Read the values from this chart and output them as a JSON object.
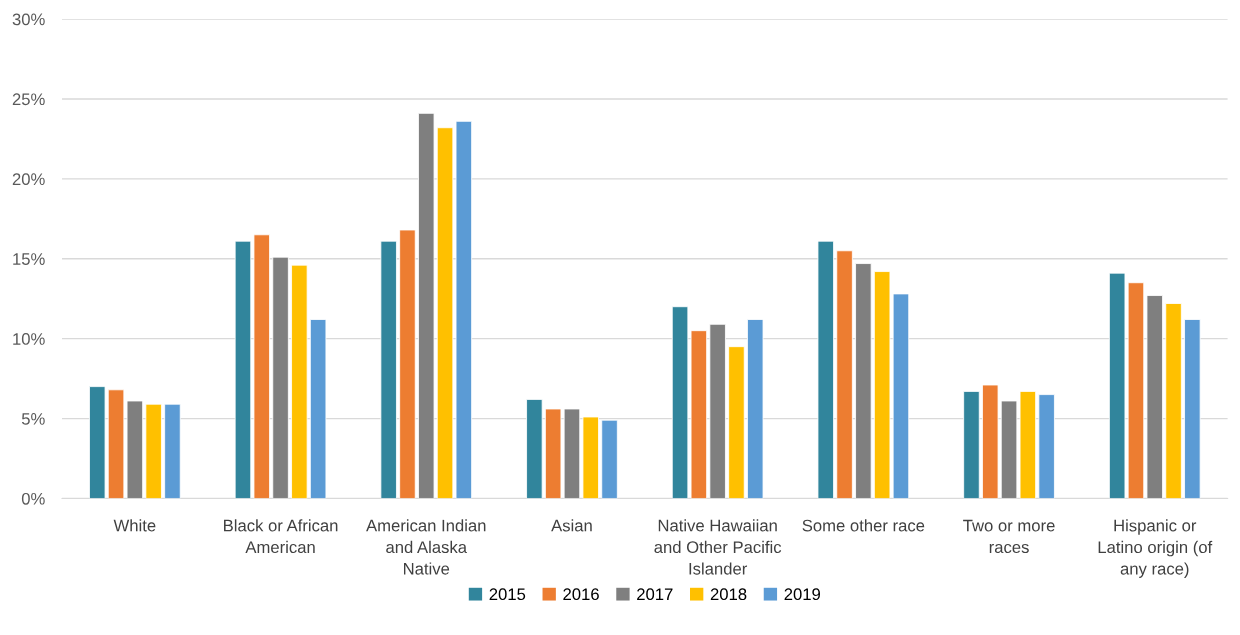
{
  "chart_data": {
    "type": "bar",
    "categories": [
      "White",
      "Black or African American",
      "American Indian and Alaska Native",
      "Asian",
      "Native Hawaiian and Other Pacific Islander",
      "Some other race",
      "Two or more races",
      "Hispanic or Latino origin (of any race)"
    ],
    "series": [
      {
        "name": "2015",
        "color": "#31859c",
        "values": [
          7.0,
          16.1,
          16.1,
          6.2,
          12.0,
          16.1,
          6.7,
          14.1
        ]
      },
      {
        "name": "2016",
        "color": "#ed7d31",
        "values": [
          6.8,
          16.5,
          16.8,
          5.6,
          10.5,
          15.5,
          7.1,
          13.5
        ]
      },
      {
        "name": "2017",
        "color": "#7f7f7f",
        "values": [
          6.1,
          15.1,
          24.1,
          5.6,
          10.9,
          14.7,
          6.1,
          12.7
        ]
      },
      {
        "name": "2018",
        "color": "#ffc000",
        "values": [
          5.9,
          14.6,
          23.2,
          5.1,
          9.5,
          14.2,
          6.7,
          12.2
        ]
      },
      {
        "name": "2019",
        "color": "#5b9bd5",
        "values": [
          5.9,
          11.2,
          23.6,
          4.9,
          11.2,
          12.8,
          6.5,
          11.2
        ]
      }
    ],
    "ylim": [
      0,
      30
    ],
    "yticks": [
      {
        "value": 0,
        "label": "0%"
      },
      {
        "value": 5,
        "label": "5%"
      },
      {
        "value": 10,
        "label": "10%"
      },
      {
        "value": 15,
        "label": "15%"
      },
      {
        "value": 20,
        "label": "20%"
      },
      {
        "value": 25,
        "label": "25%"
      },
      {
        "value": 30,
        "label": "30%"
      }
    ],
    "grid": "y",
    "legend": "bottom"
  }
}
